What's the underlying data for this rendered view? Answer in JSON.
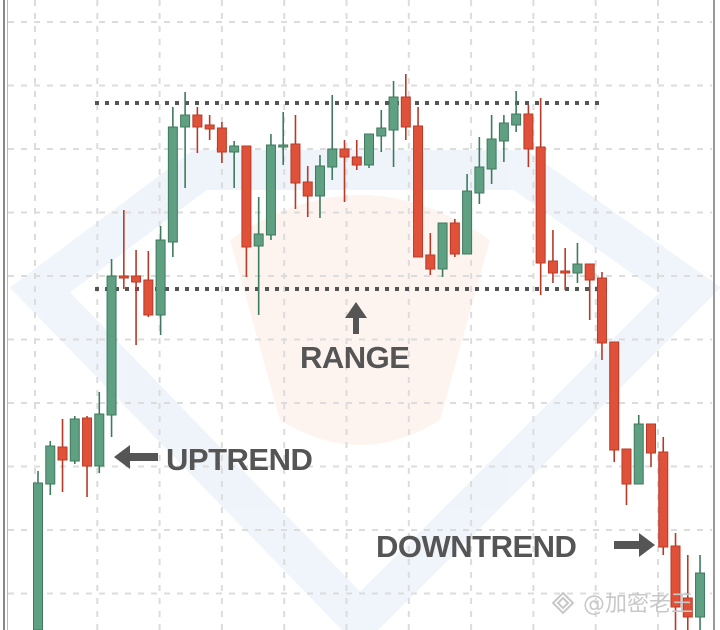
{
  "chart_data": {
    "type": "candlestick",
    "title": "",
    "xlabel": "",
    "ylabel": "",
    "ylim": [
      0,
      630
    ],
    "grid": true,
    "colors": {
      "up": "#5f9f82",
      "down": "#e0513a",
      "up_edge": "#3f7a5e",
      "down_edge": "#b83a26",
      "text": "#555555",
      "level_line": "#555555"
    },
    "candles_ohlc": [
      [
        0,
        159,
        0,
        147
      ],
      [
        146,
        189,
        135,
        184
      ],
      [
        183,
        211,
        138,
        170
      ],
      [
        169,
        214,
        166,
        211
      ],
      [
        212,
        214,
        133,
        164
      ],
      [
        164,
        238,
        157,
        216
      ],
      [
        215,
        371,
        193,
        354
      ],
      [
        354,
        420,
        341,
        353
      ],
      [
        354,
        380,
        285,
        348
      ],
      [
        350,
        379,
        313,
        315
      ],
      [
        315,
        404,
        295,
        390
      ],
      [
        388,
        523,
        373,
        503
      ],
      [
        503,
        538,
        442,
        515
      ],
      [
        515,
        523,
        477,
        503
      ],
      [
        505,
        515,
        490,
        501
      ],
      [
        502,
        508,
        467,
        478
      ],
      [
        478,
        489,
        442,
        484
      ],
      [
        484,
        484,
        353,
        383
      ],
      [
        384,
        433,
        315,
        396
      ],
      [
        395,
        496,
        390,
        485
      ],
      [
        484,
        518,
        465,
        485
      ],
      [
        486,
        515,
        421,
        447
      ],
      [
        448,
        464,
        413,
        434
      ],
      [
        434,
        475,
        412,
        464
      ],
      [
        463,
        535,
        450,
        481
      ],
      [
        481,
        490,
        428,
        473
      ],
      [
        473,
        490,
        460,
        465
      ],
      [
        465,
        496,
        462,
        496
      ],
      [
        494,
        520,
        478,
        502
      ],
      [
        500,
        549,
        463,
        533
      ],
      [
        533,
        556,
        490,
        503
      ],
      [
        504,
        523,
        373,
        373
      ],
      [
        375,
        397,
        355,
        361
      ],
      [
        361,
        407,
        353,
        407
      ],
      [
        407,
        411,
        373,
        376
      ],
      [
        376,
        456,
        376,
        439
      ],
      [
        437,
        493,
        426,
        463
      ],
      [
        461,
        515,
        446,
        491
      ],
      [
        489,
        515,
        468,
        507
      ],
      [
        505,
        539,
        498,
        516
      ],
      [
        516,
        525,
        463,
        481
      ],
      [
        483,
        532,
        335,
        367
      ],
      [
        369,
        400,
        347,
        357
      ],
      [
        359,
        382,
        340,
        357
      ],
      [
        357,
        387,
        347,
        366
      ],
      [
        366,
        366,
        310,
        350
      ],
      [
        352,
        358,
        270,
        287
      ],
      [
        288,
        288,
        168,
        180
      ],
      [
        181,
        181,
        125,
        146
      ],
      [
        146,
        215,
        146,
        206
      ],
      [
        206,
        206,
        163,
        177
      ],
      [
        178,
        193,
        75,
        83
      ],
      [
        84,
        97,
        0,
        23
      ],
      [
        32,
        75,
        0,
        13
      ],
      [
        13,
        75,
        0,
        57
      ]
    ],
    "levels": [
      {
        "kind": "resistance",
        "value": 527,
        "style": "dotted"
      },
      {
        "kind": "support",
        "value": 341,
        "style": "dotted"
      }
    ],
    "annotations": {
      "range": "RANGE",
      "uptrend": "UPTREND",
      "downtrend": "DOWNTREND"
    }
  },
  "watermark": {
    "text": "@加密老王",
    "icon": "diamond-logo-icon"
  }
}
